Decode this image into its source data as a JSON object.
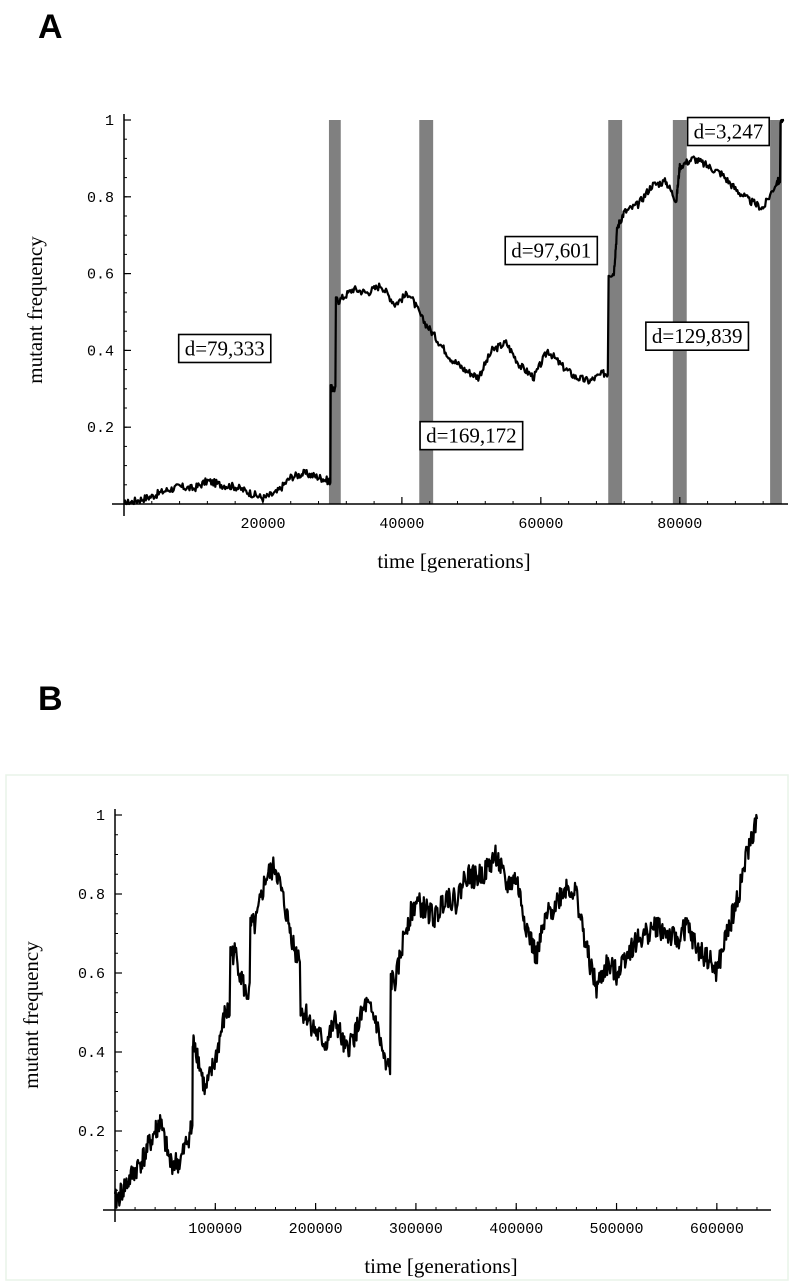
{
  "panels": {
    "a_label": "A",
    "b_label": "B"
  },
  "chart_data": [
    {
      "type": "line",
      "panel": "A",
      "xlabel": "time [generations]",
      "ylabel": "mutant frequency",
      "xlim": [
        0,
        95000
      ],
      "ylim": [
        0,
        1
      ],
      "x_ticks": [
        20000,
        40000,
        60000,
        80000
      ],
      "x_tick_labels": [
        "20000",
        "40000",
        "60000",
        "80000"
      ],
      "y_ticks": [
        0.2,
        0.4,
        0.6,
        0.8,
        1
      ],
      "y_tick_labels": [
        "0.2",
        "0.4",
        "0.6",
        "0.8",
        "1"
      ],
      "series": [
        {
          "x": [
            0,
            2000,
            4000,
            6000,
            8000,
            10000,
            12000,
            14000,
            16000,
            18000,
            20000,
            22000,
            24000,
            26000,
            28000,
            29500,
            30000,
            31000,
            33000,
            35000,
            37000,
            39000,
            41000,
            43000,
            45000,
            47000,
            49000,
            51000,
            53000,
            55000,
            57000,
            59000,
            61000,
            63000,
            65000,
            67000,
            69000,
            70500,
            71000,
            72000,
            74000,
            76000,
            78000,
            79500,
            80000,
            82000,
            84000,
            86000,
            88000,
            90000,
            92000,
            94000,
            95000
          ],
          "y": [
            0.0,
            0.01,
            0.02,
            0.035,
            0.045,
            0.04,
            0.06,
            0.05,
            0.045,
            0.03,
            0.015,
            0.03,
            0.07,
            0.08,
            0.07,
            0.06,
            0.3,
            0.53,
            0.56,
            0.55,
            0.57,
            0.52,
            0.55,
            0.48,
            0.43,
            0.38,
            0.35,
            0.33,
            0.4,
            0.42,
            0.36,
            0.33,
            0.4,
            0.36,
            0.33,
            0.32,
            0.34,
            0.6,
            0.72,
            0.76,
            0.78,
            0.83,
            0.84,
            0.79,
            0.88,
            0.9,
            0.88,
            0.86,
            0.82,
            0.79,
            0.77,
            0.84,
            1.0
          ]
        }
      ],
      "shaded_regions": [
        {
          "x0": 29500,
          "x1": 31200
        },
        {
          "x0": 42500,
          "x1": 44500
        },
        {
          "x0": 69700,
          "x1": 71700
        },
        {
          "x0": 79000,
          "x1": 81000
        },
        {
          "x0": 93000,
          "x1": 94700
        }
      ],
      "annotations": [
        {
          "text": "d=79,333",
          "x": 14500,
          "y": 0.405
        },
        {
          "text": "d=169,172",
          "x": 50000,
          "y": 0.178
        },
        {
          "text": "d=97,601",
          "x": 61500,
          "y": 0.66
        },
        {
          "text": "d=129,839",
          "x": 82500,
          "y": 0.437
        },
        {
          "text": "d=3,247",
          "x": 87000,
          "y": 0.97
        }
      ]
    },
    {
      "type": "line",
      "panel": "B",
      "xlabel": "time [generations]",
      "ylabel": "mutant frequency",
      "xlim": [
        0,
        650000
      ],
      "ylim": [
        0,
        1
      ],
      "x_ticks": [
        100000,
        200000,
        300000,
        400000,
        500000,
        600000
      ],
      "x_tick_labels": [
        "100000",
        "200000",
        "300000",
        "400000",
        "500000",
        "600000"
      ],
      "y_ticks": [
        0.2,
        0.4,
        0.6,
        0.8,
        1
      ],
      "y_tick_labels": [
        "0.2",
        "0.4",
        "0.6",
        "0.8",
        "1"
      ],
      "series": [
        {
          "x": [
            0,
            10000,
            20000,
            30000,
            40000,
            45000,
            55000,
            65000,
            75000,
            80000,
            90000,
            100000,
            110000,
            120000,
            130000,
            140000,
            150000,
            160000,
            170000,
            180000,
            190000,
            200000,
            210000,
            220000,
            230000,
            240000,
            250000,
            260000,
            270000,
            280000,
            290000,
            300000,
            310000,
            320000,
            330000,
            340000,
            350000,
            360000,
            370000,
            380000,
            390000,
            400000,
            410000,
            420000,
            430000,
            440000,
            450000,
            460000,
            470000,
            480000,
            490000,
            500000,
            510000,
            520000,
            530000,
            540000,
            550000,
            560000,
            570000,
            580000,
            590000,
            600000,
            610000,
            620000,
            630000,
            640000
          ],
          "y": [
            0.02,
            0.06,
            0.1,
            0.14,
            0.2,
            0.22,
            0.12,
            0.12,
            0.2,
            0.42,
            0.3,
            0.38,
            0.5,
            0.65,
            0.55,
            0.72,
            0.84,
            0.87,
            0.76,
            0.65,
            0.5,
            0.45,
            0.42,
            0.48,
            0.4,
            0.45,
            0.52,
            0.48,
            0.36,
            0.58,
            0.72,
            0.78,
            0.76,
            0.74,
            0.8,
            0.78,
            0.85,
            0.84,
            0.86,
            0.9,
            0.82,
            0.84,
            0.72,
            0.64,
            0.74,
            0.78,
            0.82,
            0.8,
            0.66,
            0.56,
            0.62,
            0.6,
            0.65,
            0.68,
            0.7,
            0.72,
            0.7,
            0.68,
            0.72,
            0.66,
            0.64,
            0.6,
            0.7,
            0.78,
            0.9,
            0.99
          ]
        }
      ]
    }
  ]
}
